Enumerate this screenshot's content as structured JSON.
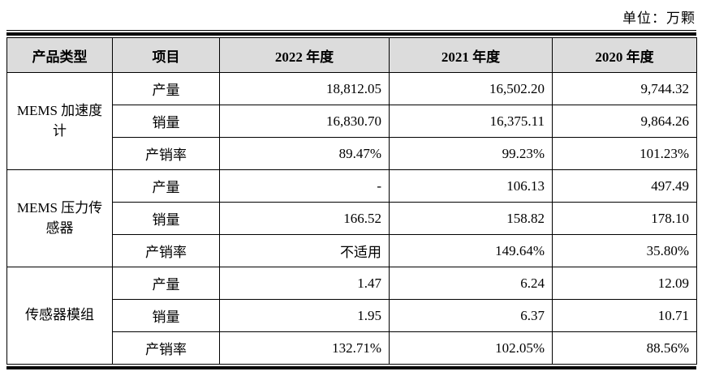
{
  "page": {
    "unit_label": "单位：万颗"
  },
  "table": {
    "headers": {
      "product_type": "产品类型",
      "item": "项目",
      "y2022": "2022 年度",
      "y2021": "2021 年度",
      "y2020": "2020 年度"
    },
    "groups": [
      {
        "product": "MEMS 加速度计",
        "rows": [
          {
            "item": "产量",
            "y2022": "18,812.05",
            "y2021": "16,502.20",
            "y2020": "9,744.32"
          },
          {
            "item": "销量",
            "y2022": "16,830.70",
            "y2021": "16,375.11",
            "y2020": "9,864.26"
          },
          {
            "item": "产销率",
            "y2022": "89.47%",
            "y2021": "99.23%",
            "y2020": "101.23%"
          }
        ]
      },
      {
        "product": "MEMS 压力传感器",
        "rows": [
          {
            "item": "产量",
            "y2022": "-",
            "y2021": "106.13",
            "y2020": "497.49"
          },
          {
            "item": "销量",
            "y2022": "166.52",
            "y2021": "158.82",
            "y2020": "178.10"
          },
          {
            "item": "产销率",
            "y2022": "不适用",
            "y2021": "149.64%",
            "y2020": "35.80%"
          }
        ]
      },
      {
        "product": "传感器模组",
        "rows": [
          {
            "item": "产量",
            "y2022": "1.47",
            "y2021": "6.24",
            "y2020": "12.09"
          },
          {
            "item": "销量",
            "y2022": "1.95",
            "y2021": "6.37",
            "y2020": "10.71"
          },
          {
            "item": "产销率",
            "y2022": "132.71%",
            "y2021": "102.05%",
            "y2020": "88.56%"
          }
        ]
      }
    ]
  }
}
